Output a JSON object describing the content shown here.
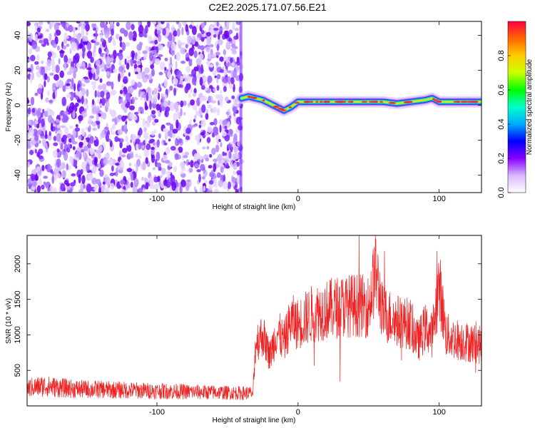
{
  "page": {
    "title": "C2E2.2025.171.07.56.E21"
  },
  "chart_data": [
    {
      "type": "heatmap",
      "title": "C2E2.2025.171.07.56.E21",
      "xlabel": "Height of straight line (km)",
      "ylabel": "Frequency (Hz)",
      "xlim": [
        -192,
        130
      ],
      "ylim": [
        -50,
        48
      ],
      "xticks": [
        -100,
        0,
        100
      ],
      "xtick_labels": [
        "-100",
        "0",
        "100"
      ],
      "yticks": [
        -40,
        -20,
        0,
        20,
        40
      ],
      "ytick_labels": [
        "-40",
        "-20",
        "0",
        "20",
        "40"
      ],
      "noise_region": {
        "x": [
          -192,
          -40
        ],
        "frequency": [
          -50,
          48
        ]
      },
      "signal_track": {
        "x": [
          -40,
          -35,
          -30,
          -25,
          -20,
          -15,
          -10,
          -5,
          0,
          10,
          20,
          30,
          40,
          50,
          60,
          70,
          80,
          90,
          95,
          100,
          110,
          120,
          130
        ],
        "frequency": [
          4,
          5,
          4,
          3,
          1,
          -1,
          -3,
          -1,
          2,
          2,
          2,
          2,
          2,
          2,
          2,
          1,
          2,
          3,
          4,
          2,
          2,
          2,
          2
        ]
      },
      "colorbar": {
        "label": "Normalized spectral amplitude",
        "range": [
          0,
          1
        ],
        "ticks": [
          0.0,
          0.2,
          0.4,
          0.6,
          0.8
        ],
        "tick_labels": [
          "0.0",
          "0.2",
          "0.4",
          "0.6",
          "0.8"
        ],
        "colors": [
          "#ffffff",
          "#d8b8ff",
          "#8800ff",
          "#0000ff",
          "#00aaff",
          "#00ffcc",
          "#00ff00",
          "#ccff00",
          "#ffcc00",
          "#ff6600",
          "#ff0044"
        ]
      },
      "grid": false
    },
    {
      "type": "line",
      "xlabel": "Height of straight line (km)",
      "ylabel": "SNR (10 * v/v)",
      "xlim": [
        -192,
        130
      ],
      "ylim": [
        0,
        2400
      ],
      "xticks": [
        -100,
        0,
        100
      ],
      "xtick_labels": [
        "-100",
        "0",
        "100"
      ],
      "yticks": [
        500,
        1000,
        1500,
        2000
      ],
      "ytick_labels": [
        "500",
        "1000",
        "1500",
        "2000"
      ],
      "color": "#ee2222",
      "series": [
        {
          "x": [
            -192,
            -180,
            -160,
            -140,
            -120,
            -100,
            -80,
            -60,
            -40,
            -32,
            -30,
            -25,
            -20,
            -15,
            -10,
            -5,
            0,
            10,
            20,
            30,
            40,
            50,
            55,
            60,
            70,
            80,
            85,
            90,
            95,
            100,
            105,
            110,
            120,
            130
          ],
          "values": [
            250,
            280,
            240,
            230,
            220,
            210,
            200,
            190,
            180,
            180,
            900,
            1000,
            700,
            1050,
            900,
            1200,
            1150,
            1300,
            1350,
            1400,
            1420,
            1400,
            1900,
            1300,
            1200,
            1150,
            900,
            1100,
            1000,
            1700,
            1000,
            950,
            900,
            850
          ]
        }
      ],
      "grid": false
    }
  ]
}
